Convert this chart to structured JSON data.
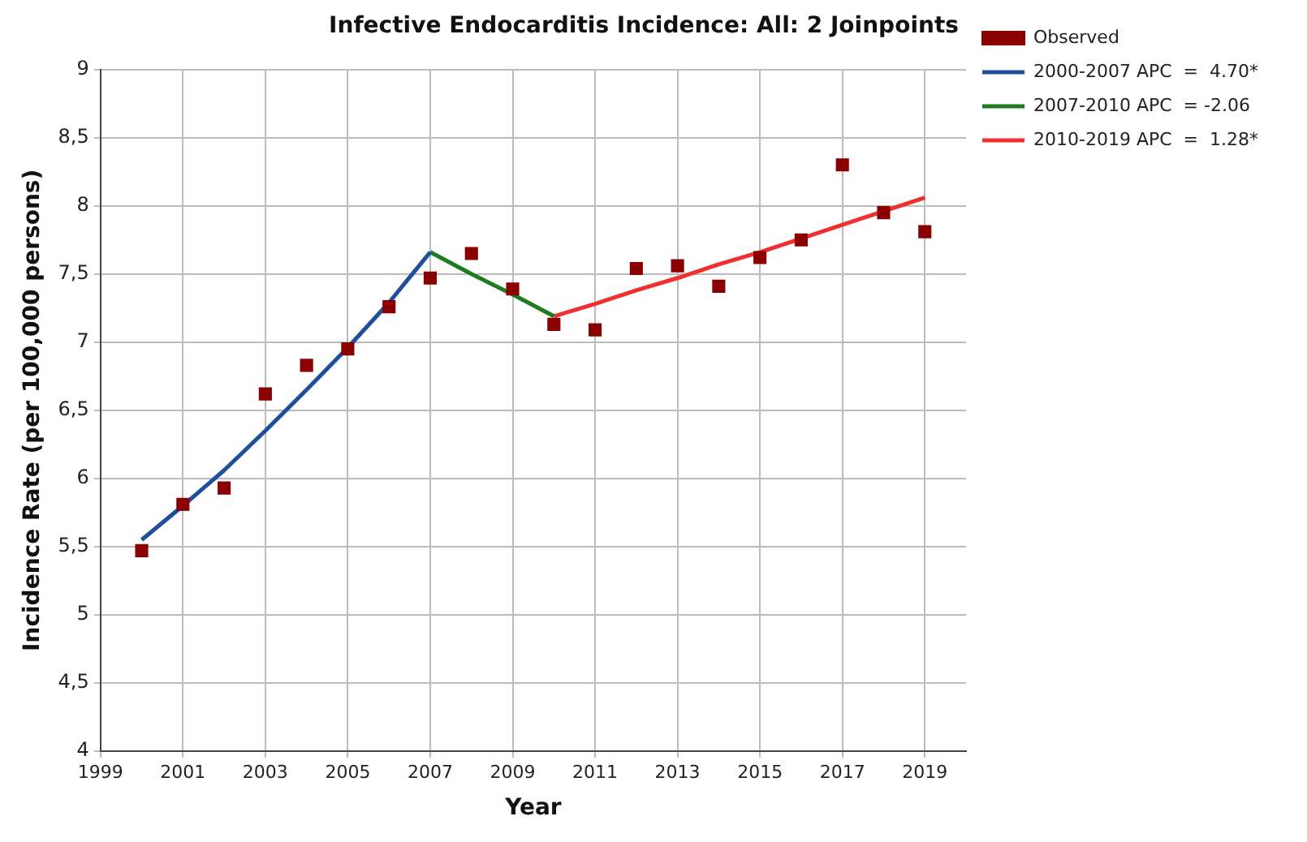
{
  "chart_data": {
    "type": "scatter",
    "title": "Infective Endocarditis Incidence: All: 2 Joinpoints",
    "xlabel": "Year",
    "ylabel": "Incidence Rate (per 100,000 persons)",
    "xlim": [
      1999,
      2020
    ],
    "xticks": [
      1999,
      2001,
      2003,
      2005,
      2007,
      2009,
      2011,
      2013,
      2015,
      2017,
      2019
    ],
    "ylim": [
      4,
      9
    ],
    "yticks": [
      4,
      {
        "value": 4.5,
        "label": "4,5"
      },
      5,
      {
        "value": 5.5,
        "label": "5,5"
      },
      6,
      {
        "value": 6.5,
        "label": "6,5"
      },
      7,
      {
        "value": 7.5,
        "label": "7,5"
      },
      8,
      {
        "value": 8.5,
        "label": "8,5"
      },
      9
    ],
    "grid": true,
    "legend": "right",
    "marker": "square",
    "series": [
      {
        "name": "Observed",
        "color": "#8b0000",
        "x": [
          2000,
          2001,
          2002,
          2003,
          2004,
          2005,
          2006,
          2007,
          2008,
          2009,
          2010,
          2011,
          2012,
          2013,
          2014,
          2015,
          2016,
          2017,
          2018,
          2019
        ],
        "values": [
          5.47,
          5.81,
          5.93,
          6.62,
          6.83,
          6.95,
          7.26,
          7.47,
          7.65,
          7.39,
          7.13,
          7.09,
          7.54,
          7.56,
          7.41,
          7.62,
          7.75,
          8.3,
          7.95,
          7.81
        ]
      },
      {
        "name": "2000-2007 APC  =  4.70*",
        "type": "line",
        "marker": "none",
        "line_style": "solid",
        "color": "#1f4e9c",
        "x": [
          2000,
          2001,
          2002,
          2003,
          2004,
          2005,
          2006,
          2007
        ],
        "values": [
          5.55,
          5.8,
          6.06,
          6.35,
          6.65,
          6.96,
          7.29,
          7.66
        ]
      },
      {
        "name": "2007-2010 APC  = -2.06",
        "type": "line",
        "marker": "none",
        "line_style": "solid",
        "color": "#1e7b1e",
        "x": [
          2007,
          2008,
          2009,
          2010
        ],
        "values": [
          7.66,
          7.5,
          7.35,
          7.19
        ]
      },
      {
        "name": "2010-2019 APC  =  1.28*",
        "type": "line",
        "marker": "none",
        "line_style": "solid",
        "color": "#f03030",
        "x": [
          2010,
          2011,
          2012,
          2013,
          2014,
          2015,
          2016,
          2017,
          2018,
          2019
        ],
        "values": [
          7.19,
          7.28,
          7.38,
          7.47,
          7.57,
          7.66,
          7.76,
          7.86,
          7.96,
          8.06
        ]
      }
    ]
  }
}
